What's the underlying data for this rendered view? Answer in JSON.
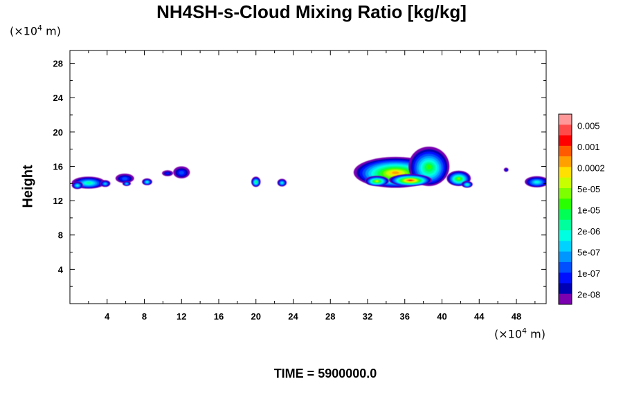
{
  "chart_data": {
    "type": "contour",
    "title": "NH4SH-s-Cloud Mixing Ratio [kg/kg]",
    "ylabel": "Height",
    "x_unit_prefix": "(×10",
    "x_unit_exp": "4",
    "x_unit_suffix": " m)",
    "y_unit_prefix": "(×10",
    "y_unit_exp": "4",
    "y_unit_suffix": " m)",
    "footer": "TIME = 5900000.0",
    "xlim": [
      0,
      51.2
    ],
    "ylim": [
      0,
      29.5
    ],
    "x_ticks": [
      4,
      8,
      12,
      16,
      20,
      24,
      28,
      32,
      36,
      40,
      44,
      48
    ],
    "y_ticks": [
      4,
      8,
      12,
      16,
      20,
      24,
      28
    ],
    "x_tick_labels": [
      "4",
      "8",
      "12",
      "16",
      "20",
      "24",
      "28",
      "32",
      "36",
      "40",
      "44",
      "48"
    ],
    "y_tick_labels": [
      "4",
      "8",
      "12",
      "16",
      "20",
      "24",
      "28"
    ],
    "colorbar": {
      "colors": [
        "#ff9999",
        "#ff4a4a",
        "#ff0000",
        "#ff5a00",
        "#ffa000",
        "#ffe000",
        "#c8ff00",
        "#7dff00",
        "#2aff00",
        "#00ff55",
        "#00ff9d",
        "#00ffe0",
        "#00d2ff",
        "#0096ff",
        "#0050ff",
        "#0010ff",
        "#0000b4",
        "#7a00b0"
      ],
      "labels": [
        "0.005",
        "0.001",
        "0.0002",
        "5e-05",
        "1e-05",
        "2e-06",
        "5e-07",
        "1e-07",
        "2e-08"
      ]
    },
    "cloud_blobs": [
      {
        "x": 2.0,
        "y": 14.1,
        "w": 3.6,
        "h": 1.4,
        "peak": 7
      },
      {
        "x": 0.8,
        "y": 13.8,
        "w": 1.2,
        "h": 0.9,
        "peak": 6
      },
      {
        "x": 3.8,
        "y": 14.0,
        "w": 1.1,
        "h": 0.8,
        "peak": 5
      },
      {
        "x": 5.9,
        "y": 14.6,
        "w": 2.0,
        "h": 1.1,
        "peak": 3
      },
      {
        "x": 6.1,
        "y": 14.0,
        "w": 0.9,
        "h": 0.6,
        "peak": 5
      },
      {
        "x": 8.3,
        "y": 14.2,
        "w": 1.1,
        "h": 0.8,
        "peak": 6
      },
      {
        "x": 10.5,
        "y": 15.2,
        "w": 1.2,
        "h": 0.7,
        "peak": 2
      },
      {
        "x": 12.0,
        "y": 15.3,
        "w": 1.8,
        "h": 1.4,
        "peak": 3
      },
      {
        "x": 20.0,
        "y": 14.2,
        "w": 1.0,
        "h": 1.2,
        "peak": 8
      },
      {
        "x": 22.8,
        "y": 14.1,
        "w": 1.0,
        "h": 0.9,
        "peak": 6
      },
      {
        "x": 35.0,
        "y": 15.3,
        "w": 9.0,
        "h": 3.6,
        "peak": 13
      },
      {
        "x": 38.6,
        "y": 16.0,
        "w": 4.4,
        "h": 4.6,
        "peak": 9
      },
      {
        "x": 36.6,
        "y": 14.4,
        "w": 4.6,
        "h": 1.4,
        "peak": 15
      },
      {
        "x": 33.0,
        "y": 14.3,
        "w": 2.6,
        "h": 1.2,
        "peak": 11
      },
      {
        "x": 41.8,
        "y": 14.6,
        "w": 2.6,
        "h": 1.8,
        "peak": 10
      },
      {
        "x": 42.7,
        "y": 13.9,
        "w": 1.2,
        "h": 0.8,
        "peak": 7
      },
      {
        "x": 46.9,
        "y": 15.6,
        "w": 0.5,
        "h": 0.5,
        "peak": 2
      },
      {
        "x": 50.2,
        "y": 14.2,
        "w": 2.6,
        "h": 1.3,
        "peak": 6
      }
    ]
  }
}
